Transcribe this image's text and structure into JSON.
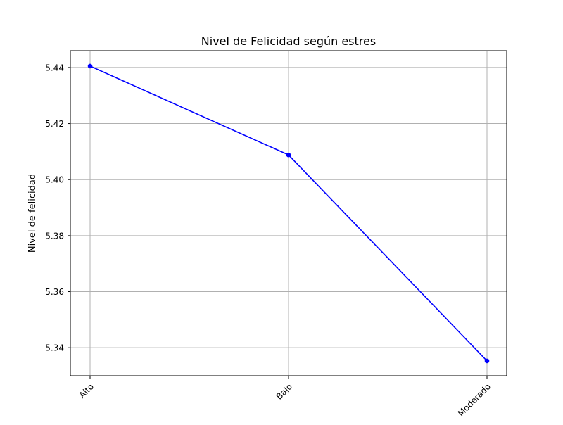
{
  "chart_data": {
    "type": "line",
    "title": "Nivel de Felicidad según estres",
    "xlabel": "",
    "ylabel": "Nivel de felicidad",
    "categories": [
      "Alto",
      "Bajo",
      "Moderado"
    ],
    "series": [
      {
        "values": [
          5.4405,
          5.4088,
          5.3353
        ],
        "color": "#0000ff",
        "marker": "circle"
      }
    ],
    "yticks": [
      "5.34",
      "5.36",
      "5.38",
      "5.40",
      "5.42",
      "5.44"
    ],
    "ylim": [
      5.33,
      5.446
    ],
    "grid": true,
    "legend": "none"
  }
}
